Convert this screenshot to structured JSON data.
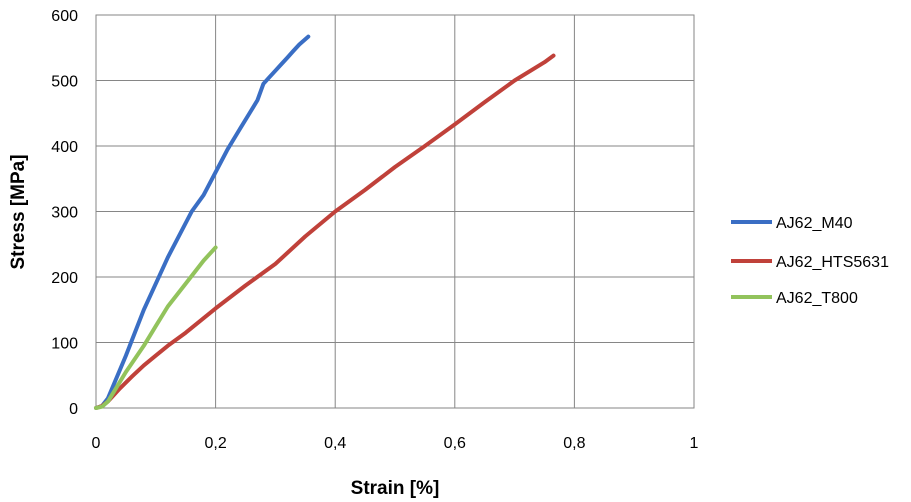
{
  "chart_data": {
    "type": "line",
    "title": "",
    "xlabel": "Strain [%]",
    "ylabel": "Stress [MPa]",
    "xlim": [
      0,
      1
    ],
    "ylim": [
      0,
      600
    ],
    "x_ticks": [
      0,
      0.2,
      0.4,
      0.6,
      0.8,
      1
    ],
    "x_tick_labels": [
      "0",
      "0,2",
      "0,4",
      "0,6",
      "0,8",
      "1"
    ],
    "y_ticks": [
      0,
      100,
      200,
      300,
      400,
      500,
      600
    ],
    "y_tick_labels": [
      "0",
      "100",
      "200",
      "300",
      "400",
      "500",
      "600"
    ],
    "grid": true,
    "legend_position": "right",
    "series": [
      {
        "name": "AJ62_M40",
        "color": "#3a6ec4",
        "x": [
          0.0,
          0.01,
          0.02,
          0.05,
          0.08,
          0.12,
          0.16,
          0.18,
          0.2,
          0.22,
          0.24,
          0.26,
          0.27,
          0.28,
          0.29,
          0.3,
          0.31,
          0.32,
          0.33,
          0.34,
          0.35,
          0.355
        ],
        "y": [
          0,
          3,
          15,
          80,
          150,
          230,
          300,
          325,
          360,
          395,
          425,
          455,
          470,
          495,
          505,
          515,
          525,
          535,
          545,
          555,
          563,
          567
        ]
      },
      {
        "name": "AJ62_HTS5631",
        "color": "#c0413a",
        "x": [
          0.0,
          0.01,
          0.02,
          0.04,
          0.06,
          0.08,
          0.1,
          0.12,
          0.15,
          0.2,
          0.25,
          0.3,
          0.35,
          0.4,
          0.45,
          0.5,
          0.55,
          0.6,
          0.65,
          0.7,
          0.75,
          0.765
        ],
        "y": [
          0,
          3,
          10,
          30,
          48,
          65,
          80,
          95,
          115,
          152,
          187,
          220,
          262,
          300,
          333,
          368,
          400,
          433,
          467,
          500,
          528,
          538
        ]
      },
      {
        "name": "AJ62_T800",
        "color": "#92c35c",
        "x": [
          0.0,
          0.01,
          0.02,
          0.05,
          0.08,
          0.1,
          0.12,
          0.15,
          0.18,
          0.2
        ],
        "y": [
          0,
          2,
          10,
          55,
          95,
          125,
          155,
          190,
          225,
          245
        ]
      }
    ]
  }
}
